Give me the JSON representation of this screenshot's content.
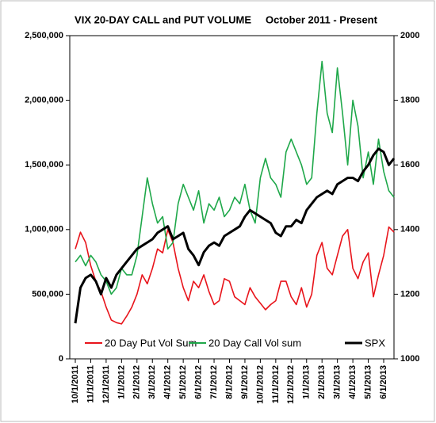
{
  "chart_data": {
    "type": "line",
    "title": "VIX 20-DAY CALL and PUT VOLUME     October 2011 - Present",
    "categories": [
      "10/1/2011",
      null,
      null,
      "11/1/2011",
      null,
      null,
      "12/1/2011",
      null,
      null,
      "1/1/2012",
      null,
      null,
      "2/1/2012",
      null,
      null,
      "3/1/2012",
      null,
      null,
      "4/1/2012",
      null,
      null,
      "5/1/2012",
      null,
      null,
      "6/1/2012",
      null,
      null,
      "7/1/2012",
      null,
      null,
      "8/1/2012",
      null,
      null,
      "9/1/2012",
      null,
      null,
      "10/1/2012",
      null,
      null,
      "11/1/2012",
      null,
      null,
      "12/1/2012",
      null,
      null,
      "1/1/2013",
      null,
      null,
      "2/1/2013",
      null,
      null,
      "3/1/2013",
      null,
      null,
      "4/1/2013",
      null,
      null,
      "5/1/2013",
      null,
      null,
      "6/1/2013",
      null,
      null
    ],
    "series": [
      {
        "name": "20 Day Put Vol Sum",
        "color": "#e8141b",
        "values": [
          850000,
          980000,
          900000,
          720000,
          600000,
          520000,
          400000,
          300000,
          280000,
          270000,
          330000,
          400000,
          500000,
          650000,
          580000,
          700000,
          850000,
          820000,
          1000000,
          900000,
          700000,
          550000,
          450000,
          600000,
          550000,
          650000,
          520000,
          420000,
          450000,
          620000,
          600000,
          480000,
          450000,
          420000,
          550000,
          480000,
          430000,
          380000,
          420000,
          450000,
          600000,
          600000,
          480000,
          420000,
          550000,
          400000,
          500000,
          800000,
          900000,
          700000,
          650000,
          800000,
          950000,
          1000000,
          700000,
          620000,
          750000,
          820000,
          480000,
          650000,
          800000,
          1020000,
          980000
        ]
      },
      {
        "name": "20 Day  Call Vol sum",
        "color": "#1fa84a",
        "values": [
          750000,
          800000,
          720000,
          800000,
          750000,
          650000,
          600000,
          500000,
          550000,
          700000,
          650000,
          650000,
          800000,
          1100000,
          1400000,
          1200000,
          1050000,
          1100000,
          850000,
          900000,
          1200000,
          1350000,
          1250000,
          1150000,
          1300000,
          1050000,
          1200000,
          1150000,
          1250000,
          1100000,
          1150000,
          1250000,
          1200000,
          1350000,
          1150000,
          1050000,
          1400000,
          1550000,
          1400000,
          1350000,
          1250000,
          1600000,
          1700000,
          1600000,
          1500000,
          1350000,
          1400000,
          1900000,
          2300000,
          1900000,
          1750000,
          2250000,
          1900000,
          1500000,
          2000000,
          1800000,
          1400000,
          1600000,
          1350000,
          1700000,
          1450000,
          1300000,
          1250000
        ]
      },
      {
        "name": "SPX",
        "color": "#000000",
        "axis": "y2",
        "values": [
          1110,
          1220,
          1250,
          1260,
          1240,
          1200,
          1250,
          1220,
          1260,
          1280,
          1300,
          1320,
          1340,
          1350,
          1360,
          1370,
          1390,
          1400,
          1410,
          1370,
          1380,
          1390,
          1340,
          1320,
          1290,
          1330,
          1350,
          1360,
          1350,
          1380,
          1390,
          1400,
          1410,
          1440,
          1460,
          1450,
          1440,
          1430,
          1420,
          1390,
          1380,
          1410,
          1410,
          1430,
          1420,
          1460,
          1480,
          1500,
          1510,
          1520,
          1510,
          1540,
          1550,
          1560,
          1560,
          1550,
          1580,
          1600,
          1630,
          1650,
          1640,
          1600,
          1620
        ]
      }
    ],
    "ylim": [
      0,
      2500000
    ],
    "yticks": [
      0,
      {
        "value": 500000,
        "label": "500,000"
      },
      {
        "value": 1000000,
        "label": "1,000,000"
      },
      {
        "value": 1500000,
        "label": "1,500,000"
      },
      {
        "value": 2000000,
        "label": "2,000,000"
      },
      {
        "value": 2500000,
        "label": "2,500,000"
      }
    ],
    "y2lim": [
      1000,
      2000
    ],
    "y2ticks": [
      1000,
      1200,
      1400,
      1600,
      1800,
      2000
    ],
    "legend": "bottom"
  }
}
